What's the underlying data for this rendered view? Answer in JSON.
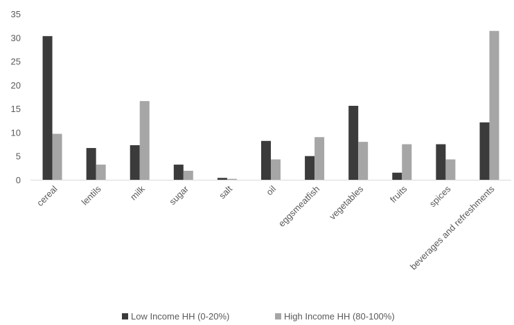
{
  "chart_data": {
    "type": "bar",
    "title": "",
    "xlabel": "",
    "ylabel": "",
    "ylim": [
      0,
      35
    ],
    "yticks": [
      0,
      5,
      10,
      15,
      20,
      25,
      30,
      35
    ],
    "grid": false,
    "legend_position": "bottom",
    "categories": [
      "cereal",
      "lentils",
      "milk",
      "sugar",
      "salt",
      "oil",
      "eggsmeatfish",
      "vegetables",
      "fruits",
      "spices",
      "beverages and refreshments"
    ],
    "series": [
      {
        "name": "Low Income HH (0-20%)",
        "color": "#3b3b3b",
        "values": [
          30.3,
          6.7,
          7.3,
          3.2,
          0.4,
          8.2,
          5.0,
          15.6,
          1.5,
          7.5,
          12.1
        ]
      },
      {
        "name": "High Income HH (80-100%)",
        "color": "#a6a6a6",
        "values": [
          9.7,
          3.2,
          16.6,
          1.9,
          0.2,
          4.3,
          9.0,
          8.0,
          7.5,
          4.3,
          31.4
        ]
      }
    ]
  }
}
